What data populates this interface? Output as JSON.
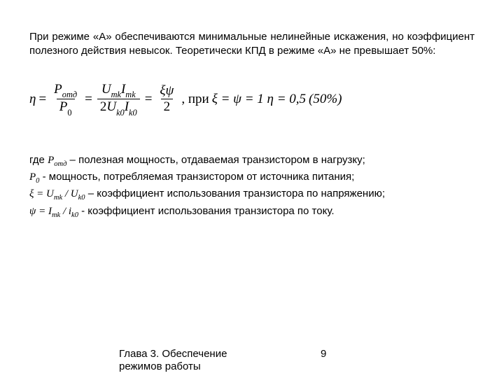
{
  "para1": "При режиме «А» обеспечиваются минимальные нелинейные искажения, но коэффициент полезного действия невысок. Теоретически КПД  в режиме «А» не превышает 50%:",
  "formula": {
    "eta": "η",
    "eq": " = ",
    "f1_num": "P",
    "f1_num_sub": "отд",
    "f1_den": "P",
    "f1_den_sub": "0",
    "f2_num_a": "U",
    "f2_num_a_sub": "mk",
    "f2_num_b": "I",
    "f2_num_b_sub": "mk",
    "f2_den_pre": "2",
    "f2_den_a": "U",
    "f2_den_a_sub": "k0",
    "f2_den_b": "I",
    "f2_den_b_sub": "k0",
    "f3_num": "ξψ",
    "f3_den": "2",
    "tail": ",  при ",
    "xi_eq": "ξ = ψ = 1   η = 0,5 ",
    "pct": "(50%)"
  },
  "defs": {
    "line1_pre": "где ",
    "line1_sym": "Pотд",
    "line1_txt": " – полезная мощность, отдаваемая транзистором в нагрузку;",
    "line2_sym": "P0",
    "line2_txt": " -  мощность, потребляемая транзистором от источника питания;",
    "line3_sym": "ξ = Umk / Uk0",
    "line3_txt": " – коэффициент использования транзистора по напряжению;",
    "line4_sym": "ψ = Imk / ik0",
    "line4_txt": " - коэффициент использования транзистора по току."
  },
  "footer_text": "Глава 3. Обеспечение режимов работы",
  "page_number": "9"
}
